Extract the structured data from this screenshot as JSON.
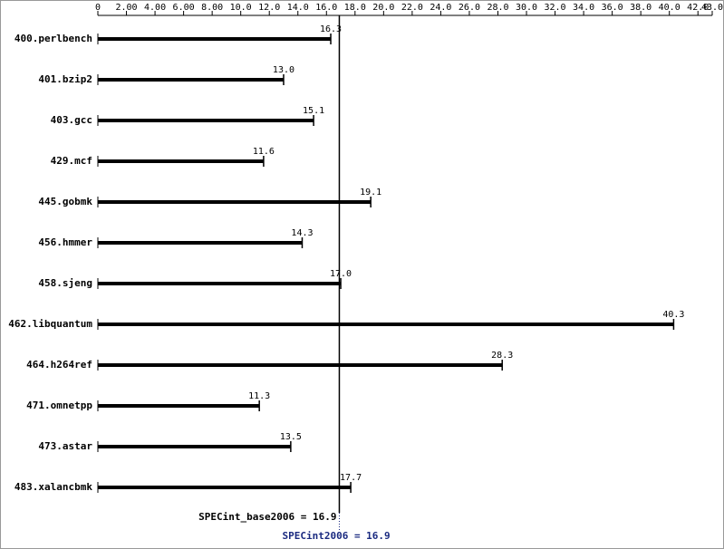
{
  "chart_data": {
    "type": "bar",
    "orientation": "horizontal",
    "categories": [
      "400.perlbench",
      "401.bzip2",
      "403.gcc",
      "429.mcf",
      "445.gobmk",
      "456.hmmer",
      "458.sjeng",
      "462.libquantum",
      "464.h264ref",
      "471.omnetpp",
      "473.astar",
      "483.xalancbmk"
    ],
    "values": [
      16.3,
      13.0,
      15.1,
      11.6,
      19.1,
      14.3,
      17.0,
      40.3,
      28.3,
      11.3,
      13.5,
      17.7
    ],
    "value_labels": [
      "16.3",
      "13.0",
      "15.1",
      "11.6",
      "19.1",
      "14.3",
      "17.0",
      "40.3",
      "28.3",
      "11.3",
      "13.5",
      "17.7"
    ],
    "color": "#000000",
    "xlim": [
      0,
      43
    ],
    "xticks": [
      0,
      {
        "value": 2,
        "label": "2.00"
      },
      {
        "value": 4,
        "label": "4.00"
      },
      {
        "value": 6,
        "label": "6.00"
      },
      {
        "value": 8,
        "label": "8.00"
      },
      {
        "value": 10,
        "label": "10.0"
      },
      {
        "value": 12,
        "label": "12.0"
      },
      {
        "value": 14,
        "label": "14.0"
      },
      {
        "value": 16,
        "label": "16.0"
      },
      {
        "value": 18,
        "label": "18.0"
      },
      {
        "value": 20,
        "label": "20.0"
      },
      {
        "value": 22,
        "label": "22.0"
      },
      {
        "value": 24,
        "label": "24.0"
      },
      {
        "value": 26,
        "label": "26.0"
      },
      {
        "value": 28,
        "label": "28.0"
      },
      {
        "value": 30,
        "label": "30.0"
      },
      {
        "value": 32,
        "label": "32.0"
      },
      {
        "value": 34,
        "label": "34.0"
      },
      {
        "value": 36,
        "label": "36.0"
      },
      {
        "value": 38,
        "label": "38.0"
      },
      {
        "value": 40,
        "label": "40.0"
      },
      {
        "value": 42,
        "label": "42.0"
      },
      {
        "value": 43,
        "label": "43.0"
      }
    ],
    "reference_lines": [
      {
        "label": "SPECint_base2006 = 16.9",
        "value": 16.9,
        "color": "#000000",
        "style": "solid"
      },
      {
        "label": "SPECint2006 = 16.9",
        "value": 16.9,
        "color": "#1a2a80",
        "style": "dotted"
      }
    ]
  }
}
